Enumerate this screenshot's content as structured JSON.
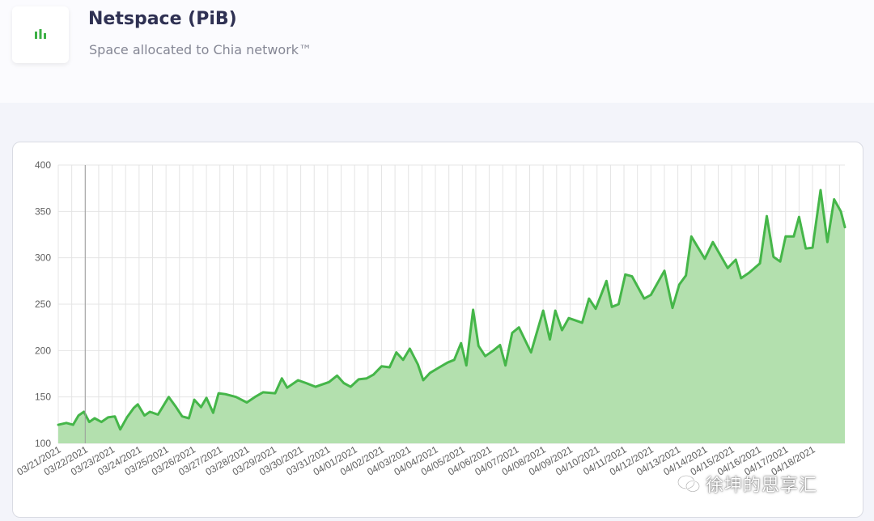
{
  "header": {
    "title": "Netspace (PiB)",
    "subtitle": "Space allocated to Chia network™",
    "icon": "bar-chart-icon"
  },
  "colors": {
    "line": "#45b649",
    "fill": "#b3e0ae",
    "grid": "#e4e4e4",
    "axis_text": "#5f5f5f"
  },
  "watermark": {
    "icon": "wechat-icon",
    "text": "徐坤的思享汇"
  },
  "chart_data": {
    "type": "area",
    "ylim": [
      100,
      400
    ],
    "yticks": [
      100,
      150,
      200,
      250,
      300,
      350,
      400
    ],
    "grid": true,
    "x_labels": [
      "03/21/2021",
      "03/22/2021",
      "03/23/2021",
      "03/24/2021",
      "03/25/2021",
      "03/26/2021",
      "03/27/2021",
      "03/28/2021",
      "03/29/2021",
      "03/30/2021",
      "03/31/2021",
      "04/01/2021",
      "04/02/2021",
      "04/03/2021",
      "04/04/2021",
      "04/05/2021",
      "04/06/2021",
      "04/07/2021",
      "04/08/2021",
      "04/09/2021",
      "04/10/2021",
      "04/11/2021",
      "04/12/2021",
      "04/13/2021",
      "04/14/2021",
      "04/15/2021",
      "04/16/2021",
      "04/17/2021",
      "04/18/2021"
    ],
    "x_range": [
      0,
      29.2
    ],
    "points": [
      [
        0,
        120
      ],
      [
        0.3,
        122
      ],
      [
        0.55,
        120
      ],
      [
        0.75,
        130
      ],
      [
        0.95,
        134
      ],
      [
        1.15,
        123
      ],
      [
        1.35,
        127
      ],
      [
        1.6,
        123
      ],
      [
        1.85,
        128
      ],
      [
        2.1,
        129
      ],
      [
        2.3,
        115
      ],
      [
        2.55,
        128
      ],
      [
        2.8,
        138
      ],
      [
        2.95,
        142
      ],
      [
        3.2,
        130
      ],
      [
        3.4,
        134
      ],
      [
        3.7,
        131
      ],
      [
        4.1,
        150
      ],
      [
        4.35,
        140
      ],
      [
        4.6,
        129
      ],
      [
        4.85,
        127
      ],
      [
        5.05,
        147
      ],
      [
        5.3,
        139
      ],
      [
        5.5,
        149
      ],
      [
        5.75,
        133
      ],
      [
        5.95,
        154
      ],
      [
        6.2,
        153
      ],
      [
        6.6,
        150
      ],
      [
        7.0,
        144
      ],
      [
        7.3,
        150
      ],
      [
        7.6,
        155
      ],
      [
        8.05,
        154
      ],
      [
        8.3,
        170
      ],
      [
        8.5,
        160
      ],
      [
        8.9,
        168
      ],
      [
        9.2,
        165
      ],
      [
        9.55,
        161
      ],
      [
        10.05,
        166
      ],
      [
        10.35,
        173
      ],
      [
        10.6,
        165
      ],
      [
        10.85,
        161
      ],
      [
        11.15,
        169
      ],
      [
        11.45,
        170
      ],
      [
        11.7,
        174
      ],
      [
        12.0,
        183
      ],
      [
        12.3,
        182
      ],
      [
        12.55,
        198
      ],
      [
        12.8,
        190
      ],
      [
        13.05,
        202
      ],
      [
        13.35,
        185
      ],
      [
        13.55,
        168
      ],
      [
        13.8,
        176
      ],
      [
        14.15,
        182
      ],
      [
        14.45,
        187
      ],
      [
        14.7,
        190
      ],
      [
        14.95,
        208
      ],
      [
        15.15,
        184
      ],
      [
        15.4,
        244
      ],
      [
        15.6,
        205
      ],
      [
        15.85,
        194
      ],
      [
        16.15,
        200
      ],
      [
        16.4,
        206
      ],
      [
        16.6,
        184
      ],
      [
        16.85,
        219
      ],
      [
        17.1,
        225
      ],
      [
        17.55,
        198
      ],
      [
        18.0,
        243
      ],
      [
        18.25,
        212
      ],
      [
        18.45,
        243
      ],
      [
        18.7,
        222
      ],
      [
        18.95,
        235
      ],
      [
        19.45,
        230
      ],
      [
        19.7,
        256
      ],
      [
        19.95,
        245
      ],
      [
        20.35,
        275
      ],
      [
        20.55,
        247
      ],
      [
        20.8,
        250
      ],
      [
        21.05,
        282
      ],
      [
        21.3,
        280
      ],
      [
        21.75,
        256
      ],
      [
        22.0,
        260
      ],
      [
        22.5,
        286
      ],
      [
        22.8,
        246
      ],
      [
        23.05,
        271
      ],
      [
        23.3,
        281
      ],
      [
        23.5,
        323
      ],
      [
        24.0,
        299
      ],
      [
        24.3,
        317
      ],
      [
        24.85,
        289
      ],
      [
        25.15,
        298
      ],
      [
        25.35,
        278
      ],
      [
        25.65,
        284
      ],
      [
        26.05,
        294
      ],
      [
        26.3,
        345
      ],
      [
        26.55,
        301
      ],
      [
        26.8,
        296
      ],
      [
        27.0,
        323
      ],
      [
        27.3,
        323
      ],
      [
        27.5,
        344
      ],
      [
        27.75,
        310
      ],
      [
        28.0,
        311
      ],
      [
        28.3,
        373
      ],
      [
        28.55,
        317
      ],
      [
        28.8,
        363
      ],
      [
        29.05,
        350
      ],
      [
        29.2,
        333
      ]
    ]
  }
}
